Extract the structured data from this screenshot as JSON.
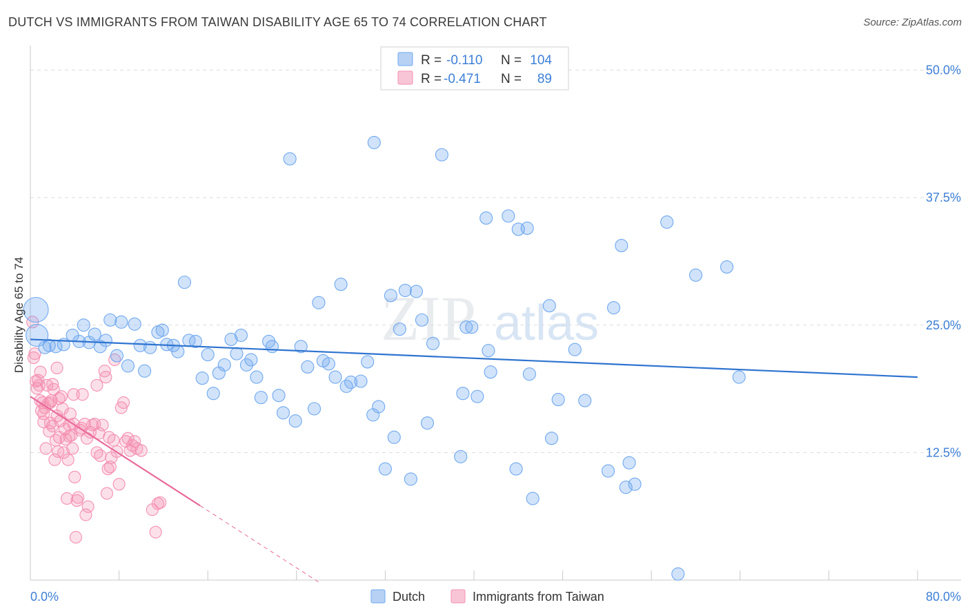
{
  "title": "DUTCH VS IMMIGRANTS FROM TAIWAN DISABILITY AGE 65 TO 74 CORRELATION CHART",
  "source": "Source: ZipAtlas.com",
  "colors": {
    "dutch": "#6fa8ef",
    "taiwan": "#f48fb1",
    "dutch_line": "#2f74d0",
    "taiwan_line": "#e86a9a",
    "tick": "#3d7fd6"
  },
  "legend": {
    "r_label": "R =",
    "n_label": "N =",
    "dutch_r": "-0.110",
    "dutch_n": "104",
    "taiwan_r": "-0.471",
    "taiwan_n": "89"
  },
  "bottom_legend": {
    "dutch": "Dutch",
    "taiwan": "Immigrants from Taiwan"
  },
  "watermark": {
    "zip": "ZIP",
    "atlas": "atlas"
  },
  "chart_data": {
    "type": "scatter",
    "title": "DUTCH VS IMMIGRANTS FROM TAIWAN DISABILITY AGE 65 TO 74 CORRELATION CHART",
    "xlabel": "",
    "ylabel": "Disability Age 65 to 74",
    "xlim": [
      0,
      80
    ],
    "ylim": [
      0,
      52
    ],
    "x_tick_labels": [
      "0.0%",
      "80.0%"
    ],
    "y_ticks": [
      12.5,
      25.0,
      37.5,
      50.0
    ],
    "y_tick_labels": [
      "12.5%",
      "25.0%",
      "37.5%",
      "50.0%"
    ],
    "grid": true,
    "series": [
      {
        "name": "Dutch",
        "r": -0.11,
        "n": 104,
        "trend": {
          "x": [
            0,
            80
          ],
          "y": [
            23.6,
            19.9
          ]
        },
        "points": [
          [
            0.5,
            26.5
          ],
          [
            0.6,
            24.0
          ],
          [
            1.3,
            22.8
          ],
          [
            1.7,
            23.0
          ],
          [
            2.3,
            22.9
          ],
          [
            3.0,
            23.1
          ],
          [
            3.8,
            24.0
          ],
          [
            4.4,
            23.4
          ],
          [
            4.8,
            25.0
          ],
          [
            5.3,
            23.3
          ],
          [
            5.8,
            24.1
          ],
          [
            6.3,
            22.9
          ],
          [
            6.8,
            23.5
          ],
          [
            7.2,
            25.5
          ],
          [
            7.8,
            22.0
          ],
          [
            8.2,
            25.3
          ],
          [
            8.8,
            21.0
          ],
          [
            9.4,
            25.1
          ],
          [
            9.9,
            23.0
          ],
          [
            10.3,
            20.5
          ],
          [
            10.8,
            22.8
          ],
          [
            11.5,
            24.3
          ],
          [
            11.9,
            24.5
          ],
          [
            12.3,
            23.1
          ],
          [
            12.9,
            23.0
          ],
          [
            13.3,
            22.4
          ],
          [
            13.9,
            29.2
          ],
          [
            14.3,
            23.5
          ],
          [
            14.9,
            23.4
          ],
          [
            15.5,
            19.8
          ],
          [
            16.0,
            22.1
          ],
          [
            16.5,
            18.3
          ],
          [
            17.0,
            20.3
          ],
          [
            17.5,
            21.1
          ],
          [
            18.1,
            23.6
          ],
          [
            18.6,
            22.2
          ],
          [
            19.0,
            24.0
          ],
          [
            19.5,
            21.1
          ],
          [
            19.9,
            21.6
          ],
          [
            20.4,
            19.9
          ],
          [
            20.8,
            17.9
          ],
          [
            21.5,
            23.4
          ],
          [
            21.8,
            22.9
          ],
          [
            22.4,
            18.1
          ],
          [
            22.8,
            16.4
          ],
          [
            23.4,
            41.3
          ],
          [
            23.9,
            15.6
          ],
          [
            24.4,
            22.9
          ],
          [
            25.0,
            20.9
          ],
          [
            25.6,
            16.8
          ],
          [
            26.0,
            27.2
          ],
          [
            26.4,
            21.5
          ],
          [
            26.9,
            21.2
          ],
          [
            27.5,
            19.9
          ],
          [
            28.0,
            29.0
          ],
          [
            28.5,
            19.0
          ],
          [
            28.9,
            19.4
          ],
          [
            29.8,
            19.5
          ],
          [
            30.4,
            21.4
          ],
          [
            30.9,
            16.2
          ],
          [
            31.4,
            17.0
          ],
          [
            32.0,
            10.9
          ],
          [
            31.0,
            42.9
          ],
          [
            32.5,
            27.9
          ],
          [
            32.8,
            14.0
          ],
          [
            33.3,
            24.6
          ],
          [
            33.8,
            28.4
          ],
          [
            34.3,
            9.9
          ],
          [
            34.8,
            28.3
          ],
          [
            35.3,
            25.5
          ],
          [
            35.8,
            15.4
          ],
          [
            36.3,
            23.2
          ],
          [
            37.1,
            41.7
          ],
          [
            38.8,
            12.1
          ],
          [
            39.0,
            18.3
          ],
          [
            39.3,
            24.8
          ],
          [
            39.8,
            24.8
          ],
          [
            40.3,
            18.0
          ],
          [
            41.1,
            35.5
          ],
          [
            41.3,
            22.5
          ],
          [
            41.5,
            20.4
          ],
          [
            43.1,
            35.7
          ],
          [
            43.8,
            10.9
          ],
          [
            44.0,
            34.4
          ],
          [
            44.8,
            34.5
          ],
          [
            45.0,
            20.2
          ],
          [
            45.3,
            8.0
          ],
          [
            46.8,
            26.9
          ],
          [
            47.0,
            13.9
          ],
          [
            47.6,
            17.7
          ],
          [
            49.1,
            22.6
          ],
          [
            50.0,
            17.6
          ],
          [
            52.6,
            26.7
          ],
          [
            52.1,
            10.7
          ],
          [
            53.3,
            32.8
          ],
          [
            53.7,
            9.1
          ],
          [
            54.0,
            11.5
          ],
          [
            54.5,
            9.4
          ],
          [
            57.4,
            35.1
          ],
          [
            60.0,
            29.9
          ],
          [
            58.4,
            0.6
          ],
          [
            62.8,
            30.7
          ],
          [
            63.9,
            19.9
          ]
        ]
      },
      {
        "name": "Immigrants from Taiwan",
        "r": -0.471,
        "n": 89,
        "trend": {
          "x": [
            0,
            15.3
          ],
          "y": [
            18.0,
            7.3
          ]
        },
        "trend_dashed": {
          "x": [
            15.3,
            26.0
          ],
          "y": [
            7.3,
            -0.2
          ]
        },
        "points": [
          [
            0.2,
            25.3
          ],
          [
            0.3,
            21.8
          ],
          [
            0.4,
            22.2
          ],
          [
            0.5,
            19.5
          ],
          [
            0.6,
            18.8
          ],
          [
            0.7,
            19.6
          ],
          [
            0.8,
            19.1
          ],
          [
            0.9,
            17.6
          ],
          [
            1.0,
            16.6
          ],
          [
            1.1,
            17.4
          ],
          [
            1.2,
            15.5
          ],
          [
            1.3,
            16.9
          ],
          [
            1.4,
            12.9
          ],
          [
            1.5,
            19.1
          ],
          [
            1.6,
            17.3
          ],
          [
            1.7,
            14.6
          ],
          [
            1.8,
            15.4
          ],
          [
            1.9,
            17.6
          ],
          [
            2.0,
            15.1
          ],
          [
            2.1,
            18.7
          ],
          [
            2.2,
            11.8
          ],
          [
            2.3,
            13.7
          ],
          [
            2.4,
            16.1
          ],
          [
            2.5,
            12.6
          ],
          [
            2.6,
            14.0
          ],
          [
            2.7,
            15.6
          ],
          [
            2.8,
            18.0
          ],
          [
            2.9,
            16.8
          ],
          [
            3.0,
            12.5
          ],
          [
            3.1,
            14.8
          ],
          [
            3.2,
            13.8
          ],
          [
            3.3,
            8.0
          ],
          [
            3.4,
            11.8
          ],
          [
            3.5,
            15.2
          ],
          [
            3.6,
            16.3
          ],
          [
            3.7,
            14.2
          ],
          [
            3.8,
            12.9
          ],
          [
            3.9,
            18.2
          ],
          [
            4.0,
            10.1
          ],
          [
            4.1,
            4.2
          ],
          [
            4.2,
            7.8
          ],
          [
            4.3,
            8.1
          ],
          [
            4.5,
            14.7
          ],
          [
            4.7,
            18.2
          ],
          [
            4.9,
            15.3
          ],
          [
            5.0,
            6.4
          ],
          [
            5.1,
            13.9
          ],
          [
            5.2,
            7.2
          ],
          [
            5.4,
            14.5
          ],
          [
            5.6,
            15.2
          ],
          [
            5.8,
            15.3
          ],
          [
            6.0,
            19.1
          ],
          [
            6.2,
            14.4
          ],
          [
            6.3,
            12.2
          ],
          [
            6.5,
            15.2
          ],
          [
            6.7,
            20.5
          ],
          [
            6.8,
            19.9
          ],
          [
            6.9,
            8.5
          ],
          [
            7.0,
            10.9
          ],
          [
            7.1,
            14.0
          ],
          [
            7.2,
            11.1
          ],
          [
            7.3,
            12.0
          ],
          [
            7.5,
            13.7
          ],
          [
            7.6,
            21.6
          ],
          [
            7.8,
            12.6
          ],
          [
            8.0,
            9.4
          ],
          [
            8.2,
            16.9
          ],
          [
            8.4,
            17.4
          ],
          [
            8.6,
            13.6
          ],
          [
            8.8,
            13.9
          ],
          [
            9.0,
            12.7
          ],
          [
            9.2,
            13.2
          ],
          [
            9.4,
            13.6
          ],
          [
            11.0,
            6.9
          ],
          [
            11.3,
            4.7
          ],
          [
            11.5,
            7.5
          ],
          [
            11.7,
            7.6
          ],
          [
            2.4,
            20.8
          ],
          [
            3.9,
            15.3
          ],
          [
            4.6,
            14.9
          ],
          [
            2.0,
            19.2
          ],
          [
            1.8,
            17.4
          ],
          [
            0.9,
            20.4
          ],
          [
            1.2,
            16.3
          ],
          [
            2.6,
            17.8
          ],
          [
            3.5,
            14.1
          ],
          [
            6.0,
            12.5
          ],
          [
            9.6,
            12.9
          ],
          [
            10.0,
            12.7
          ]
        ]
      }
    ]
  }
}
